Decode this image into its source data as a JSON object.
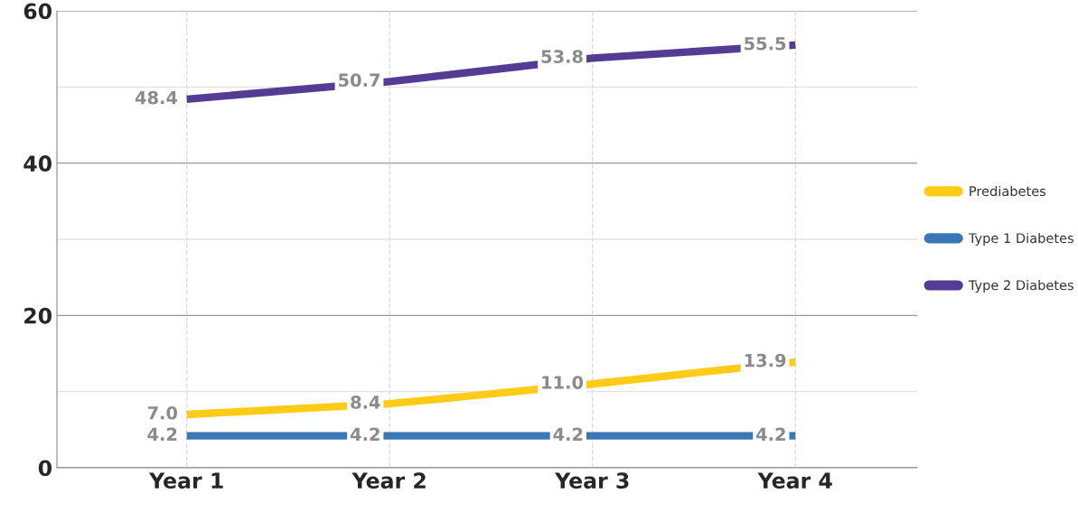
{
  "chart_data": {
    "type": "line",
    "categories": [
      "Year 1",
      "Year 2",
      "Year 3",
      "Year 4"
    ],
    "series": [
      {
        "name": "Prediabetes",
        "color": "#fecb17",
        "values": [
          7.0,
          8.4,
          11.0,
          13.9
        ],
        "value_labels": [
          "7.0",
          "8.4",
          "11.0",
          "13.9"
        ]
      },
      {
        "name": "Type 1 Diabetes",
        "color": "#3a78b5",
        "values": [
          4.2,
          4.2,
          4.2,
          4.2
        ],
        "value_labels": [
          "4.2",
          "4.2",
          "4.2",
          "4.2"
        ]
      },
      {
        "name": "Type 2 Diabetes",
        "color": "#543b93",
        "values": [
          48.4,
          50.7,
          53.8,
          55.5
        ],
        "value_labels": [
          "48.4",
          "50.7",
          "53.8",
          "55.5"
        ]
      }
    ],
    "ylim": [
      0,
      60
    ],
    "yticks": [
      0,
      {
        "value": 10,
        "label": null
      },
      20,
      {
        "value": 30,
        "label": null
      },
      40,
      {
        "value": 50,
        "label": null
      },
      60
    ],
    "grid": true,
    "legend": "right",
    "data_labels": true,
    "line_style": "solid"
  }
}
